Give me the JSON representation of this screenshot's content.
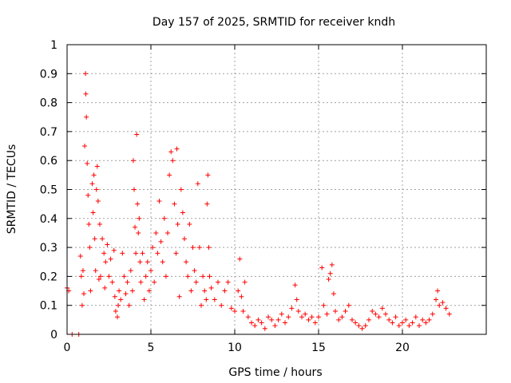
{
  "chart_data": {
    "type": "scatter",
    "title": "Day 157 of 2025, SRMTID for receiver kndh",
    "xlabel": "GPS time / hours",
    "ylabel": "SRMTID / TECUs",
    "xlim": [
      0,
      25
    ],
    "ylim": [
      0,
      1
    ],
    "x_ticks": [
      "0",
      "5",
      "10",
      "15",
      "20"
    ],
    "x_tick_values": [
      0,
      5,
      10,
      15,
      20
    ],
    "y_ticks": [
      "0",
      "0.1",
      "0.2",
      "0.3",
      "0.4",
      "0.5",
      "0.6",
      "0.7",
      "0.8",
      "0.9",
      "1"
    ],
    "y_tick_values": [
      0,
      0.1,
      0.2,
      0.3,
      0.4,
      0.5,
      0.6,
      0.7,
      0.8,
      0.9,
      1.0
    ],
    "grid": true,
    "marker": "plus",
    "color": "#ff0000",
    "series": [
      {
        "name": "SRMTID",
        "points": [
          [
            0.0,
            0.16
          ],
          [
            0.1,
            0.15
          ],
          [
            0.3,
            0.0
          ],
          [
            0.7,
            0.0
          ],
          [
            0.8,
            0.27
          ],
          [
            0.85,
            0.2
          ],
          [
            0.9,
            0.1
          ],
          [
            0.95,
            0.22
          ],
          [
            1.0,
            0.14
          ],
          [
            1.05,
            0.65
          ],
          [
            1.1,
            0.9
          ],
          [
            1.12,
            0.83
          ],
          [
            1.15,
            0.75
          ],
          [
            1.2,
            0.59
          ],
          [
            1.25,
            0.48
          ],
          [
            1.3,
            0.38
          ],
          [
            1.35,
            0.3
          ],
          [
            1.4,
            0.15
          ],
          [
            1.5,
            0.52
          ],
          [
            1.55,
            0.42
          ],
          [
            1.6,
            0.55
          ],
          [
            1.65,
            0.33
          ],
          [
            1.7,
            0.22
          ],
          [
            1.75,
            0.5
          ],
          [
            1.8,
            0.58
          ],
          [
            1.85,
            0.46
          ],
          [
            1.9,
            0.19
          ],
          [
            1.95,
            0.38
          ],
          [
            2.0,
            0.2
          ],
          [
            2.1,
            0.33
          ],
          [
            2.2,
            0.28
          ],
          [
            2.25,
            0.16
          ],
          [
            2.3,
            0.25
          ],
          [
            2.4,
            0.31
          ],
          [
            2.5,
            0.2
          ],
          [
            2.6,
            0.26
          ],
          [
            2.7,
            0.18
          ],
          [
            2.8,
            0.29
          ],
          [
            2.85,
            0.13
          ],
          [
            2.9,
            0.08
          ],
          [
            3.0,
            0.06
          ],
          [
            3.05,
            0.1
          ],
          [
            3.1,
            0.15
          ],
          [
            3.2,
            0.12
          ],
          [
            3.3,
            0.28
          ],
          [
            3.4,
            0.2
          ],
          [
            3.5,
            0.14
          ],
          [
            3.6,
            0.18
          ],
          [
            3.7,
            0.1
          ],
          [
            3.8,
            0.22
          ],
          [
            3.9,
            0.15
          ],
          [
            3.95,
            0.6
          ],
          [
            4.0,
            0.5
          ],
          [
            4.05,
            0.37
          ],
          [
            4.1,
            0.28
          ],
          [
            4.15,
            0.69
          ],
          [
            4.2,
            0.45
          ],
          [
            4.25,
            0.35
          ],
          [
            4.3,
            0.4
          ],
          [
            4.35,
            0.25
          ],
          [
            4.4,
            0.18
          ],
          [
            4.5,
            0.28
          ],
          [
            4.6,
            0.12
          ],
          [
            4.7,
            0.2
          ],
          [
            4.8,
            0.25
          ],
          [
            4.9,
            0.15
          ],
          [
            5.0,
            0.22
          ],
          [
            5.1,
            0.3
          ],
          [
            5.2,
            0.18
          ],
          [
            5.3,
            0.35
          ],
          [
            5.4,
            0.28
          ],
          [
            5.5,
            0.46
          ],
          [
            5.6,
            0.32
          ],
          [
            5.7,
            0.25
          ],
          [
            5.8,
            0.4
          ],
          [
            5.9,
            0.2
          ],
          [
            6.0,
            0.35
          ],
          [
            6.1,
            0.55
          ],
          [
            6.2,
            0.63
          ],
          [
            6.3,
            0.6
          ],
          [
            6.4,
            0.45
          ],
          [
            6.5,
            0.28
          ],
          [
            6.55,
            0.64
          ],
          [
            6.6,
            0.38
          ],
          [
            6.7,
            0.13
          ],
          [
            6.8,
            0.5
          ],
          [
            6.9,
            0.42
          ],
          [
            7.0,
            0.33
          ],
          [
            7.1,
            0.25
          ],
          [
            7.2,
            0.2
          ],
          [
            7.3,
            0.38
          ],
          [
            7.4,
            0.15
          ],
          [
            7.5,
            0.3
          ],
          [
            7.6,
            0.22
          ],
          [
            7.7,
            0.18
          ],
          [
            7.8,
            0.52
          ],
          [
            7.9,
            0.3
          ],
          [
            8.0,
            0.1
          ],
          [
            8.1,
            0.2
          ],
          [
            8.2,
            0.15
          ],
          [
            8.3,
            0.12
          ],
          [
            8.35,
            0.45
          ],
          [
            8.4,
            0.55
          ],
          [
            8.45,
            0.3
          ],
          [
            8.5,
            0.2
          ],
          [
            8.6,
            0.16
          ],
          [
            8.8,
            0.12
          ],
          [
            9.0,
            0.18
          ],
          [
            9.2,
            0.1
          ],
          [
            9.4,
            0.15
          ],
          [
            9.6,
            0.18
          ],
          [
            9.8,
            0.09
          ],
          [
            10.0,
            0.08
          ],
          [
            10.2,
            0.15
          ],
          [
            10.3,
            0.26
          ],
          [
            10.4,
            0.13
          ],
          [
            10.5,
            0.08
          ],
          [
            10.6,
            0.18
          ],
          [
            10.8,
            0.06
          ],
          [
            11.0,
            0.04
          ],
          [
            11.2,
            0.03
          ],
          [
            11.4,
            0.05
          ],
          [
            11.6,
            0.04
          ],
          [
            11.8,
            0.02
          ],
          [
            12.0,
            0.06
          ],
          [
            12.2,
            0.05
          ],
          [
            12.4,
            0.03
          ],
          [
            12.6,
            0.05
          ],
          [
            12.8,
            0.07
          ],
          [
            13.0,
            0.04
          ],
          [
            13.2,
            0.06
          ],
          [
            13.4,
            0.09
          ],
          [
            13.6,
            0.17
          ],
          [
            13.7,
            0.12
          ],
          [
            13.8,
            0.08
          ],
          [
            14.0,
            0.06
          ],
          [
            14.2,
            0.07
          ],
          [
            14.4,
            0.05
          ],
          [
            14.6,
            0.06
          ],
          [
            14.8,
            0.04
          ],
          [
            15.0,
            0.06
          ],
          [
            15.2,
            0.23
          ],
          [
            15.3,
            0.1
          ],
          [
            15.5,
            0.07
          ],
          [
            15.6,
            0.19
          ],
          [
            15.7,
            0.21
          ],
          [
            15.8,
            0.24
          ],
          [
            15.9,
            0.14
          ],
          [
            16.0,
            0.08
          ],
          [
            16.2,
            0.05
          ],
          [
            16.4,
            0.06
          ],
          [
            16.6,
            0.08
          ],
          [
            16.8,
            0.1
          ],
          [
            17.0,
            0.05
          ],
          [
            17.2,
            0.04
          ],
          [
            17.4,
            0.03
          ],
          [
            17.6,
            0.02
          ],
          [
            17.8,
            0.03
          ],
          [
            18.0,
            0.05
          ],
          [
            18.2,
            0.08
          ],
          [
            18.4,
            0.07
          ],
          [
            18.6,
            0.06
          ],
          [
            18.8,
            0.09
          ],
          [
            19.0,
            0.07
          ],
          [
            19.2,
            0.05
          ],
          [
            19.4,
            0.04
          ],
          [
            19.6,
            0.06
          ],
          [
            19.8,
            0.03
          ],
          [
            20.0,
            0.04
          ],
          [
            20.2,
            0.05
          ],
          [
            20.4,
            0.03
          ],
          [
            20.6,
            0.04
          ],
          [
            20.8,
            0.06
          ],
          [
            21.0,
            0.03
          ],
          [
            21.2,
            0.05
          ],
          [
            21.4,
            0.04
          ],
          [
            21.6,
            0.05
          ],
          [
            21.8,
            0.07
          ],
          [
            22.0,
            0.12
          ],
          [
            22.1,
            0.15
          ],
          [
            22.2,
            0.1
          ],
          [
            22.4,
            0.11
          ],
          [
            22.6,
            0.09
          ],
          [
            22.8,
            0.07
          ]
        ]
      }
    ]
  }
}
